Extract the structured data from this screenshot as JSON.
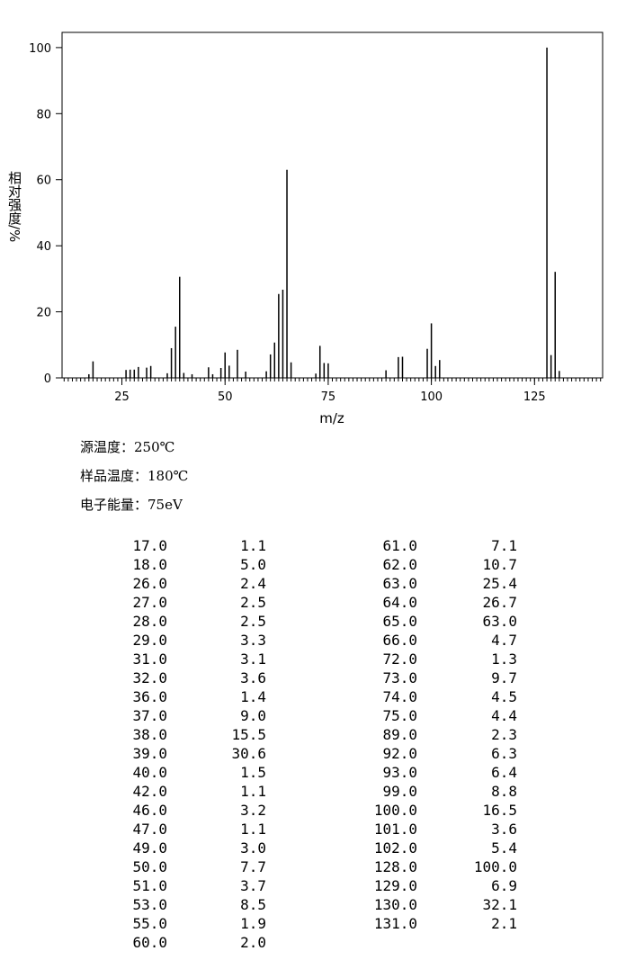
{
  "chart_data": {
    "type": "bar",
    "x_label": "m/z",
    "y_label": "相对强度/%",
    "x": [
      17,
      18,
      26,
      27,
      28,
      29,
      31,
      32,
      36,
      37,
      38,
      39,
      40,
      42,
      46,
      47,
      49,
      50,
      51,
      53,
      55,
      60,
      61,
      62,
      63,
      64,
      65,
      66,
      72,
      73,
      74,
      75,
      89,
      92,
      93,
      99,
      100,
      101,
      102,
      128,
      129,
      130,
      131
    ],
    "values": [
      1.1,
      5.0,
      2.4,
      2.5,
      2.5,
      3.3,
      3.1,
      3.6,
      1.4,
      9.0,
      15.5,
      30.6,
      1.5,
      1.1,
      3.2,
      1.1,
      3.0,
      7.7,
      3.7,
      8.5,
      1.9,
      2.0,
      7.1,
      10.7,
      25.4,
      26.7,
      63.0,
      4.7,
      1.3,
      9.7,
      4.5,
      4.4,
      2.3,
      6.3,
      6.4,
      8.8,
      16.5,
      3.6,
      5.4,
      100.0,
      6.9,
      32.1,
      2.1
    ],
    "color": "#000000",
    "xlim": [
      10.5,
      141.5
    ],
    "xticks": [
      25,
      50,
      75,
      100,
      125
    ],
    "ylim": [
      0,
      104.6
    ],
    "yticks": [
      0,
      20,
      40,
      60,
      80,
      100
    ]
  },
  "conditions": [
    "源温度：250℃",
    "样品温度：180℃",
    "电子能量：75eV"
  ],
  "peaks": [
    [
      "17.0",
      "1.1"
    ],
    [
      "18.0",
      "5.0"
    ],
    [
      "26.0",
      "2.4"
    ],
    [
      "27.0",
      "2.5"
    ],
    [
      "28.0",
      "2.5"
    ],
    [
      "29.0",
      "3.3"
    ],
    [
      "31.0",
      "3.1"
    ],
    [
      "32.0",
      "3.6"
    ],
    [
      "36.0",
      "1.4"
    ],
    [
      "37.0",
      "9.0"
    ],
    [
      "38.0",
      "15.5"
    ],
    [
      "39.0",
      "30.6"
    ],
    [
      "40.0",
      "1.5"
    ],
    [
      "42.0",
      "1.1"
    ],
    [
      "46.0",
      "3.2"
    ],
    [
      "47.0",
      "1.1"
    ],
    [
      "49.0",
      "3.0"
    ],
    [
      "50.0",
      "7.7"
    ],
    [
      "51.0",
      "3.7"
    ],
    [
      "53.0",
      "8.5"
    ],
    [
      "55.0",
      "1.9"
    ],
    [
      "60.0",
      "2.0"
    ],
    [
      "61.0",
      "7.1"
    ],
    [
      "62.0",
      "10.7"
    ],
    [
      "63.0",
      "25.4"
    ],
    [
      "64.0",
      "26.7"
    ],
    [
      "65.0",
      "63.0"
    ],
    [
      "66.0",
      "4.7"
    ],
    [
      "72.0",
      "1.3"
    ],
    [
      "73.0",
      "9.7"
    ],
    [
      "74.0",
      "4.5"
    ],
    [
      "75.0",
      "4.4"
    ],
    [
      "89.0",
      "2.3"
    ],
    [
      "92.0",
      "6.3"
    ],
    [
      "93.0",
      "6.4"
    ],
    [
      "99.0",
      "8.8"
    ],
    [
      "100.0",
      "16.5"
    ],
    [
      "101.0",
      "3.6"
    ],
    [
      "102.0",
      "5.4"
    ],
    [
      "128.0",
      "100.0"
    ],
    [
      "129.0",
      "6.9"
    ],
    [
      "130.0",
      "32.1"
    ],
    [
      "131.0",
      "2.1"
    ]
  ]
}
